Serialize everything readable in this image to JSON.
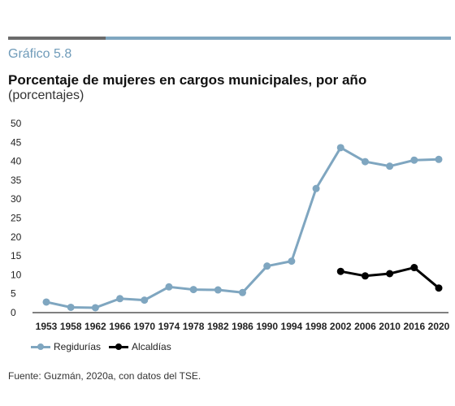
{
  "header": {
    "figure_label": "Gráfico 5.8",
    "title": "Porcentaje de mujeres en cargos municipales, por año",
    "subtitle": "(porcentajes)"
  },
  "source": "Fuente: Guzmán, 2020a, con datos del TSE.",
  "colors": {
    "regidurias": "#7fa6c0",
    "alcaldias": "#000000",
    "bar_dark": "#6b6b6b"
  },
  "chart_data": {
    "type": "line",
    "categories": [
      "1953",
      "1958",
      "1962",
      "1966",
      "1970",
      "1974",
      "1978",
      "1982",
      "1986",
      "1990",
      "1994",
      "1998",
      "2002",
      "2006",
      "2010",
      "2016",
      "2020"
    ],
    "ylim": [
      0,
      50
    ],
    "yticks": [
      0,
      5,
      10,
      15,
      20,
      25,
      30,
      35,
      40,
      45,
      50
    ],
    "grid": false,
    "legend_position": "bottom-left",
    "series": [
      {
        "name": "Regidurías",
        "color": "#7fa6c0",
        "values": [
          2.8,
          1.4,
          1.3,
          3.7,
          3.3,
          6.8,
          6.1,
          6.0,
          5.3,
          12.3,
          13.6,
          32.8,
          43.6,
          39.9,
          38.7,
          40.3,
          40.5
        ]
      },
      {
        "name": "Alcaldías",
        "color": "#000000",
        "values": [
          null,
          null,
          null,
          null,
          null,
          null,
          null,
          null,
          null,
          null,
          null,
          null,
          10.9,
          9.7,
          10.3,
          11.9,
          6.5
        ]
      }
    ]
  }
}
